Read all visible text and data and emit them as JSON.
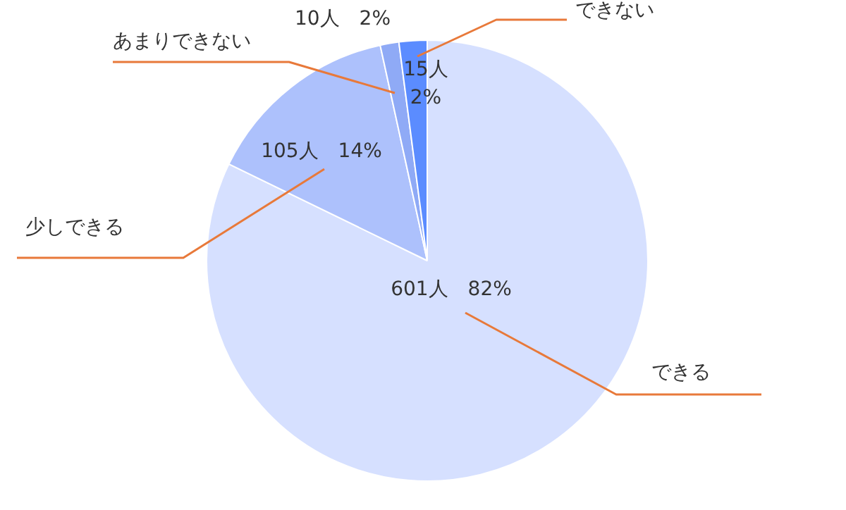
{
  "chart_data": {
    "type": "pie",
    "categories": [
      "できない",
      "あまりできない",
      "少しできる",
      "できる"
    ],
    "values": [
      15,
      10,
      105,
      601
    ],
    "colors": [
      "#5b8cff",
      "#8faaf6",
      "#adc1fc",
      "#d6e0ff"
    ],
    "value_labels": [
      "15人\n2%",
      "10人　2%",
      "105人　14%",
      "601人　82%"
    ],
    "legend": false
  }
}
